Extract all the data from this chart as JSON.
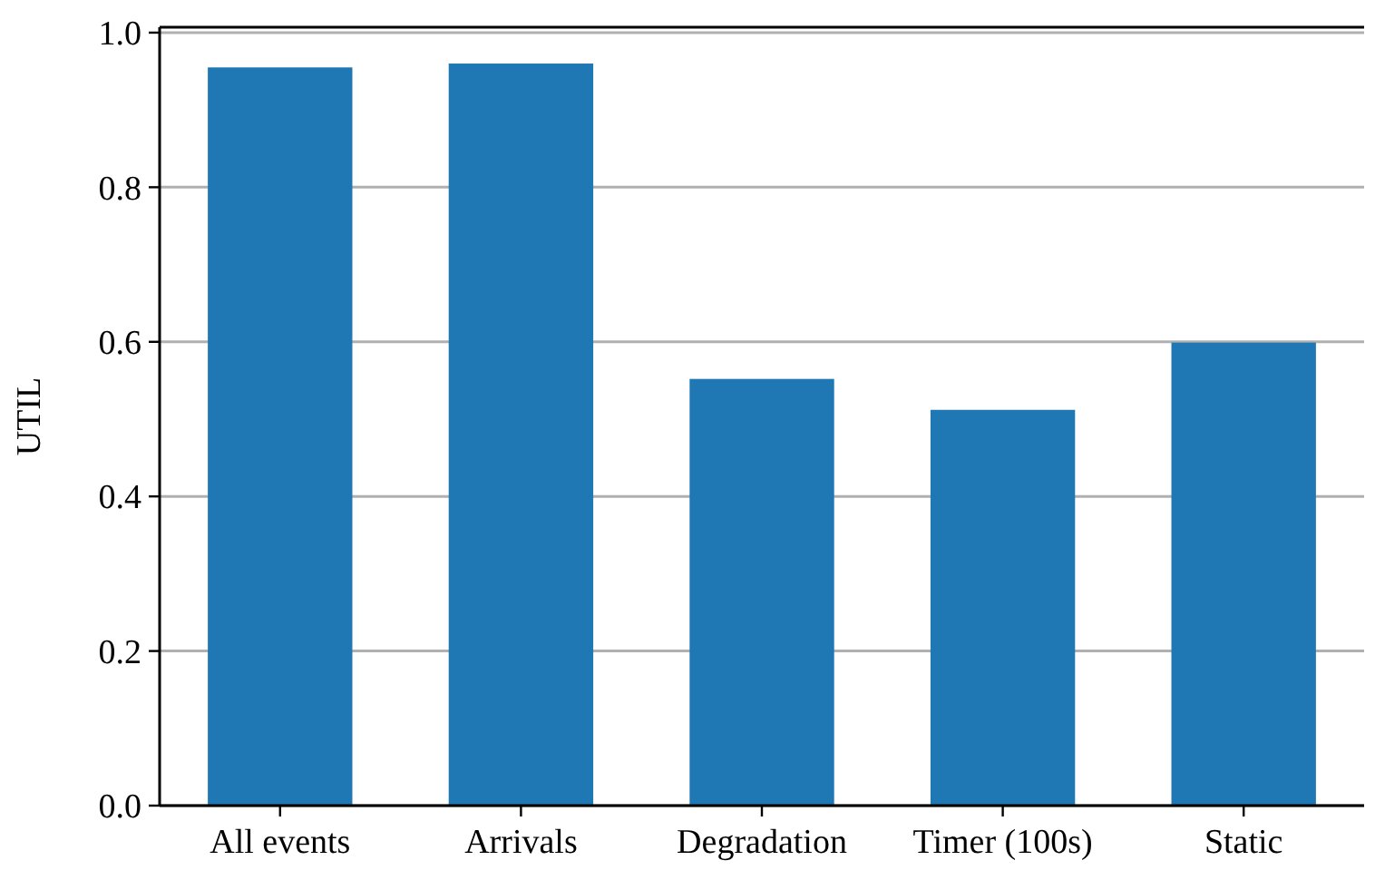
{
  "chart_data": {
    "type": "bar",
    "ylabel": "UTIL",
    "categories": [
      "All events",
      "Arrivals",
      "Degradation",
      "Timer (100s)",
      "Static"
    ],
    "values": [
      0.955,
      0.96,
      0.552,
      0.512,
      0.599
    ],
    "color": "#1f77b4",
    "ylim": [
      0,
      1.007
    ],
    "yticks": [
      {
        "value": 0,
        "label": "0.0"
      },
      {
        "value": 0.2,
        "label": "0.2"
      },
      {
        "value": 0.4,
        "label": "0.4"
      },
      {
        "value": 0.6,
        "label": "0.6"
      },
      {
        "value": 0.8,
        "label": "0.8"
      },
      {
        "value": 1,
        "label": "1.0"
      }
    ],
    "grid": "y"
  }
}
